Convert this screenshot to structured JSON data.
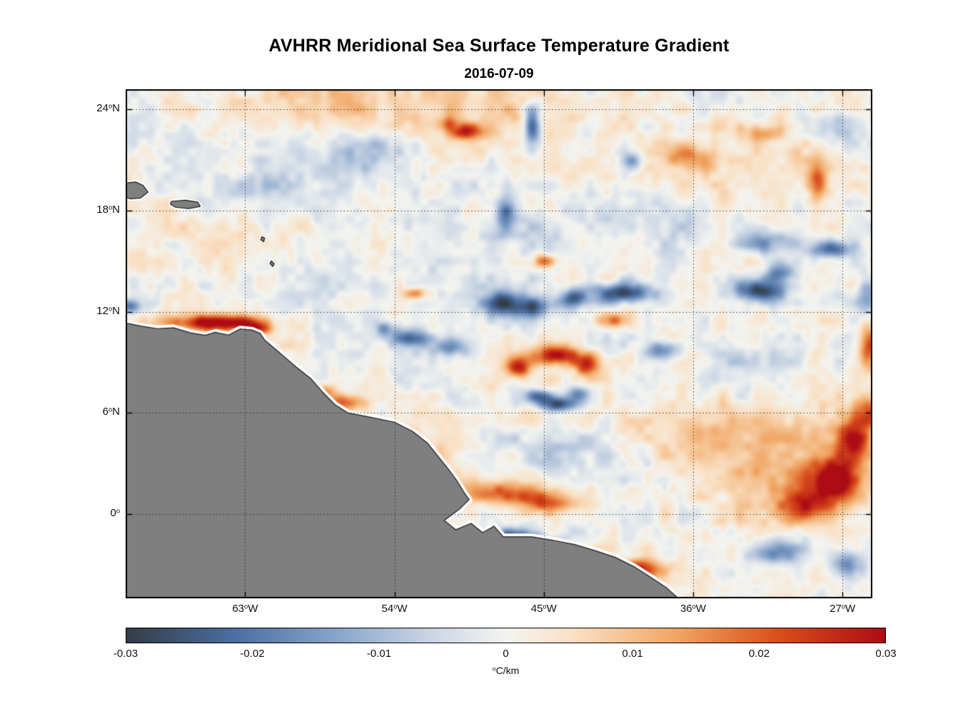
{
  "chart_data": {
    "type": "heatmap",
    "title": "AVHRR Meridional Sea Surface Temperature Gradient",
    "subtitle": "2016-07-09",
    "x_axis": {
      "range": [
        70.2,
        25.2
      ],
      "unit": "degrees west",
      "ticks": [
        {
          "value": 63,
          "label": "63",
          "suffix": "W"
        },
        {
          "value": 54,
          "label": "54",
          "suffix": "W"
        },
        {
          "value": 45,
          "label": "45",
          "suffix": "W"
        },
        {
          "value": 36,
          "label": "36",
          "suffix": "W"
        },
        {
          "value": 27,
          "label": "27",
          "suffix": "W"
        }
      ]
    },
    "y_axis": {
      "range": [
        -5.0,
        25.2
      ],
      "unit": "degrees north",
      "ticks": [
        {
          "value": 24,
          "label": "24",
          "suffix": "N"
        },
        {
          "value": 18,
          "label": "18",
          "suffix": "N"
        },
        {
          "value": 12,
          "label": "12",
          "suffix": "N"
        },
        {
          "value": 6,
          "label": "6",
          "suffix": "N"
        },
        {
          "value": 0,
          "label": "0",
          "suffix": ""
        }
      ]
    },
    "grid": {
      "show": true,
      "style": "dotted",
      "color": "rgba(30,30,30,0.85)"
    },
    "colorbar": {
      "min": -0.03,
      "max": 0.03,
      "ticks": [
        {
          "value": -0.03,
          "label": "-0.03"
        },
        {
          "value": -0.02,
          "label": "-0.02"
        },
        {
          "value": -0.01,
          "label": "-0.01"
        },
        {
          "value": 0,
          "label": "0"
        },
        {
          "value": 0.01,
          "label": "0.01"
        },
        {
          "value": 0.02,
          "label": "0.02"
        },
        {
          "value": 0.03,
          "label": "0.03"
        }
      ],
      "degree_symbol": "o",
      "unit_label": "C/km"
    },
    "colormap_stops": [
      [
        -1.0,
        "#333c47"
      ],
      [
        -0.72,
        "#4b6da0"
      ],
      [
        -0.45,
        "#87a4ca"
      ],
      [
        -0.18,
        "#cfd9e6"
      ],
      [
        0.0,
        "#f3f4f0"
      ],
      [
        0.18,
        "#f9e0c4"
      ],
      [
        0.45,
        "#f1a663"
      ],
      [
        0.72,
        "#d94e1c"
      ],
      [
        1.0,
        "#ad0c14"
      ]
    ],
    "land": {
      "fill": "#7f7f7f",
      "outline": "#1a1a1a",
      "coast_halo": "#ffffff",
      "mainland": [
        [
          70.5,
          11.4
        ],
        [
          69.3,
          11.15
        ],
        [
          68.3,
          11.0
        ],
        [
          67.3,
          11.05
        ],
        [
          66.3,
          10.75
        ],
        [
          65.4,
          10.6
        ],
        [
          64.8,
          10.78
        ],
        [
          64.0,
          10.62
        ],
        [
          63.3,
          10.98
        ],
        [
          62.6,
          10.92
        ],
        [
          62.1,
          10.72
        ],
        [
          61.8,
          10.3
        ],
        [
          61.2,
          9.8
        ],
        [
          60.6,
          9.3
        ],
        [
          59.9,
          8.7
        ],
        [
          59.0,
          8.0
        ],
        [
          58.3,
          7.2
        ],
        [
          57.6,
          6.5
        ],
        [
          56.8,
          6.0
        ],
        [
          55.5,
          5.75
        ],
        [
          54.0,
          5.45
        ],
        [
          52.9,
          4.9
        ],
        [
          52.0,
          4.2
        ],
        [
          51.35,
          3.4
        ],
        [
          50.7,
          2.6
        ],
        [
          50.25,
          2.0
        ],
        [
          49.85,
          1.35
        ],
        [
          49.5,
          0.85
        ],
        [
          50.03,
          0.34
        ],
        [
          51.0,
          -0.38
        ],
        [
          50.3,
          -0.93
        ],
        [
          49.38,
          -0.55
        ],
        [
          48.69,
          -1.1
        ],
        [
          48.0,
          -0.72
        ],
        [
          47.44,
          -1.35
        ],
        [
          45.72,
          -1.35
        ],
        [
          44.43,
          -1.56
        ],
        [
          43.14,
          -1.81
        ],
        [
          41.85,
          -2.19
        ],
        [
          40.69,
          -2.57
        ],
        [
          39.57,
          -3.12
        ],
        [
          38.54,
          -3.76
        ],
        [
          37.63,
          -4.35
        ],
        [
          36.9,
          -5.0
        ],
        [
          36.7,
          -5.6
        ],
        [
          70.6,
          -5.6
        ]
      ],
      "islands": [
        {
          "name": "hispaniola",
          "halo": 6,
          "points": [
            [
              70.5,
              19.6
            ],
            [
              69.6,
              19.7
            ],
            [
              69.15,
              19.5
            ],
            [
              68.85,
              19.1
            ],
            [
              69.3,
              18.75
            ],
            [
              69.9,
              18.7
            ],
            [
              70.5,
              18.85
            ]
          ]
        },
        {
          "name": "puerto-rico",
          "halo": 5,
          "points": [
            [
              67.45,
              18.55
            ],
            [
              66.6,
              18.62
            ],
            [
              65.85,
              18.5
            ],
            [
              65.7,
              18.25
            ],
            [
              66.4,
              18.12
            ],
            [
              67.2,
              18.2
            ],
            [
              67.5,
              18.38
            ]
          ]
        },
        {
          "name": "lesser-antilles-north",
          "halo": 3,
          "points": [
            [
              62.0,
              16.45
            ],
            [
              61.82,
              16.38
            ],
            [
              61.88,
              16.15
            ],
            [
              62.06,
              16.28
            ]
          ]
        },
        {
          "name": "lesser-antilles-south",
          "halo": 3,
          "points": [
            [
              61.42,
              15.02
            ],
            [
              61.24,
              14.85
            ],
            [
              61.34,
              14.68
            ],
            [
              61.5,
              14.86
            ]
          ]
        }
      ]
    },
    "field": {
      "background_bias": 0.0005,
      "noise": [
        {
          "seed": 7,
          "scale": 1.15,
          "amp": 0.0042
        },
        {
          "seed": 13,
          "scale": 0.5,
          "amp": 0.0028
        }
      ],
      "feature_format": [
        "lon_w",
        "lat_n",
        "sigma_lon_deg",
        "sigma_lat_deg",
        "amplitude_degC_per_km"
      ],
      "features": [
        [
          64.6,
          11.35,
          2.0,
          0.33,
          0.034
        ],
        [
          62.4,
          10.95,
          0.7,
          0.25,
          0.02
        ],
        [
          49.7,
          22.7,
          0.75,
          0.33,
          0.024
        ],
        [
          50.7,
          23.2,
          0.5,
          0.3,
          0.012
        ],
        [
          46.6,
          8.7,
          0.5,
          0.45,
          0.026
        ],
        [
          44.3,
          9.4,
          0.9,
          0.4,
          0.031
        ],
        [
          42.4,
          8.9,
          0.5,
          0.45,
          0.024
        ],
        [
          57.2,
          6.6,
          1.1,
          0.35,
          0.02
        ],
        [
          58.3,
          7.3,
          0.5,
          0.3,
          0.016
        ],
        [
          47.8,
          1.3,
          1.8,
          0.5,
          0.02
        ],
        [
          44.8,
          0.7,
          1.4,
          0.45,
          0.018
        ],
        [
          39.3,
          -3.3,
          1.3,
          0.45,
          0.024
        ],
        [
          26.3,
          4.4,
          0.7,
          1.1,
          0.026
        ],
        [
          27.6,
          1.9,
          1.0,
          0.9,
          0.03
        ],
        [
          29.3,
          0.4,
          1.1,
          0.7,
          0.02
        ],
        [
          25.4,
          9.9,
          0.45,
          1.0,
          0.022
        ],
        [
          25.3,
          6.2,
          0.5,
          0.8,
          0.018
        ],
        [
          52.7,
          13.1,
          0.5,
          0.25,
          0.018
        ],
        [
          45.0,
          15.0,
          0.5,
          0.3,
          0.018
        ],
        [
          40.8,
          11.5,
          0.8,
          0.35,
          0.016
        ],
        [
          28.5,
          19.7,
          0.4,
          0.9,
          0.016
        ],
        [
          36.2,
          21.2,
          1.2,
          0.5,
          0.012
        ],
        [
          31.8,
          22.6,
          0.9,
          0.4,
          0.012
        ],
        [
          50.0,
          23.8,
          6.0,
          1.2,
          0.007
        ],
        [
          59.0,
          24.5,
          4.0,
          1.0,
          0.006
        ],
        [
          33.0,
          20.8,
          4.0,
          1.5,
          0.006
        ],
        [
          30.5,
          2.5,
          3.5,
          2.2,
          0.01
        ],
        [
          52.5,
          3.5,
          2.0,
          1.3,
          0.008
        ],
        [
          35.0,
          5.5,
          3.0,
          1.5,
          0.006
        ],
        [
          64.0,
          16.5,
          3.0,
          1.0,
          0.005
        ],
        [
          45.7,
          23.0,
          0.35,
          0.8,
          -0.026
        ],
        [
          47.6,
          12.5,
          0.8,
          0.5,
          -0.03
        ],
        [
          45.6,
          12.3,
          0.8,
          0.45,
          -0.026
        ],
        [
          43.2,
          12.8,
          0.6,
          0.4,
          -0.022
        ],
        [
          40.3,
          13.1,
          1.3,
          0.4,
          -0.03
        ],
        [
          31.9,
          13.3,
          1.0,
          0.45,
          -0.032
        ],
        [
          30.8,
          14.3,
          0.7,
          0.4,
          -0.02
        ],
        [
          27.6,
          15.7,
          0.8,
          0.35,
          -0.022
        ],
        [
          45.4,
          7.0,
          0.6,
          0.3,
          -0.022
        ],
        [
          44.1,
          6.5,
          0.8,
          0.3,
          -0.028
        ],
        [
          42.9,
          7.1,
          0.5,
          0.3,
          -0.02
        ],
        [
          52.9,
          10.4,
          0.9,
          0.35,
          -0.02
        ],
        [
          50.8,
          9.9,
          0.8,
          0.35,
          -0.018
        ],
        [
          54.5,
          11.0,
          0.5,
          0.3,
          -0.014
        ],
        [
          47.3,
          17.7,
          0.35,
          0.8,
          -0.016
        ],
        [
          39.6,
          20.9,
          0.5,
          0.4,
          -0.014
        ],
        [
          27.3,
          23.0,
          1.2,
          0.6,
          -0.012
        ],
        [
          31.2,
          16.1,
          1.2,
          0.5,
          -0.014
        ],
        [
          30.9,
          -2.3,
          1.3,
          0.5,
          -0.02
        ],
        [
          26.6,
          -3.0,
          0.6,
          0.6,
          -0.018
        ],
        [
          47.3,
          -1.4,
          1.6,
          0.35,
          -0.026
        ],
        [
          37.8,
          9.7,
          0.7,
          0.4,
          -0.02
        ],
        [
          70.0,
          12.3,
          0.5,
          0.3,
          -0.02
        ],
        [
          25.5,
          12.8,
          0.5,
          0.8,
          -0.016
        ],
        [
          60.0,
          19.5,
          4.0,
          1.5,
          -0.006
        ],
        [
          46.0,
          16.3,
          3.0,
          1.5,
          -0.006
        ],
        [
          55.5,
          21.5,
          2.0,
          1.0,
          -0.008
        ],
        [
          37.0,
          17.5,
          3.0,
          1.2,
          -0.005
        ],
        [
          33.5,
          8.5,
          2.0,
          1.5,
          -0.006
        ],
        [
          44.0,
          3.5,
          2.5,
          1.0,
          -0.006
        ],
        [
          57.5,
          13.5,
          3.0,
          1.2,
          -0.005
        ]
      ]
    }
  }
}
